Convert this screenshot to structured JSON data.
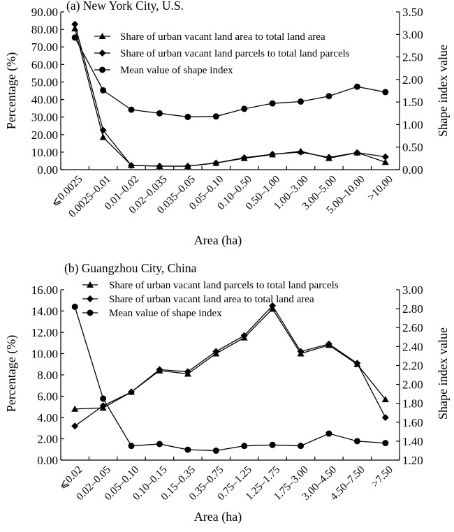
{
  "chart_data": [
    {
      "type": "line",
      "title": "(a) New York City, U.S.",
      "xlabel": "Area (ha)",
      "ylabel_left": "Percentage (%)",
      "ylabel_right": "Shape index value",
      "ylim_left": [
        0,
        90
      ],
      "ylim_right": [
        0,
        3.5
      ],
      "grid": false,
      "legend_position": "top-right",
      "categories": [
        "⩽0.0025",
        "0.0025–0.01",
        "0.01–0.02",
        "0.02–0.035",
        "0.035–0.05",
        "0.05–0.10",
        "0.10–0.50",
        "0.50–1.00",
        "1.00–3.00",
        "3.00–5.00",
        "5.00–10.00",
        ">10.00"
      ],
      "left_ticks": [
        "0.00",
        "10.00",
        "20.00",
        "30.00",
        "40.00",
        "50.00",
        "60.00",
        "70.00",
        "80.00",
        "90.00"
      ],
      "right_ticks": [
        "0.00",
        "0.50",
        "1.00",
        "1.50",
        "2.00",
        "2.50",
        "3.00",
        "3.50"
      ],
      "series": [
        {
          "name": "Share of urban vacant land area to total land area",
          "marker": "triangle",
          "axis": "left",
          "values": [
            80.5,
            18.5,
            2.5,
            2.0,
            2.0,
            3.8,
            6.5,
            8.6,
            10.5,
            6.5,
            9.7,
            4.3
          ]
        },
        {
          "name": "Share of urban vacant land parcels to total land parcels",
          "marker": "diamond",
          "axis": "left",
          "values": [
            83.0,
            22.5,
            2.4,
            2.0,
            2.0,
            3.8,
            6.8,
            8.8,
            10.0,
            7.0,
            9.7,
            7.3
          ]
        },
        {
          "name": "Mean value of shape index",
          "marker": "circle",
          "axis": "right",
          "values": [
            2.93,
            1.76,
            1.33,
            1.25,
            1.17,
            1.18,
            1.35,
            1.47,
            1.51,
            1.63,
            1.84,
            1.72
          ]
        }
      ]
    },
    {
      "type": "line",
      "title": "(b) Guangzhou City, China",
      "xlabel": "Area (ha)",
      "ylabel_left": "Percentage (%)",
      "ylabel_right": "Shape index value",
      "ylim_left": [
        0,
        16
      ],
      "ylim_right": [
        1.2,
        3.0
      ],
      "grid": false,
      "legend_position": "top-right",
      "categories": [
        "⩽0.02",
        "0.02–0.05",
        "0.05–0.10",
        "0.10–0.15",
        "0.15–0.35",
        "0.35–0.75",
        "0.75–1.25",
        "1.25–1.75",
        "1.75–3.00",
        "3.00–4.50",
        "4.50–7.50",
        ">7.50"
      ],
      "left_ticks": [
        "0.00",
        "2.00",
        "4.00",
        "6.00",
        "8.00",
        "10.00",
        "12.00",
        "14.00",
        "16.00"
      ],
      "right_ticks": [
        "1.20",
        "1.40",
        "1.60",
        "1.80",
        "2.00",
        "2.20",
        "2.40",
        "2.60",
        "2.80",
        "3.00"
      ],
      "series": [
        {
          "name": "Share of urban vacant land parcels to total land parcels",
          "marker": "triangle",
          "axis": "left",
          "values": [
            4.8,
            4.9,
            6.4,
            8.4,
            8.1,
            10.0,
            11.5,
            14.2,
            10.0,
            10.8,
            9.0,
            5.7
          ]
        },
        {
          "name": "Share of urban vacant land area to total land area",
          "marker": "diamond",
          "axis": "left",
          "values": [
            3.2,
            5.1,
            6.4,
            8.5,
            8.3,
            10.2,
            11.7,
            14.5,
            10.2,
            10.9,
            9.1,
            4.0
          ]
        },
        {
          "name": "Mean value of shape index",
          "marker": "circle",
          "axis": "right",
          "values": [
            2.82,
            1.85,
            1.35,
            1.37,
            1.31,
            1.3,
            1.35,
            1.36,
            1.35,
            1.48,
            1.4,
            1.38
          ]
        }
      ]
    }
  ]
}
